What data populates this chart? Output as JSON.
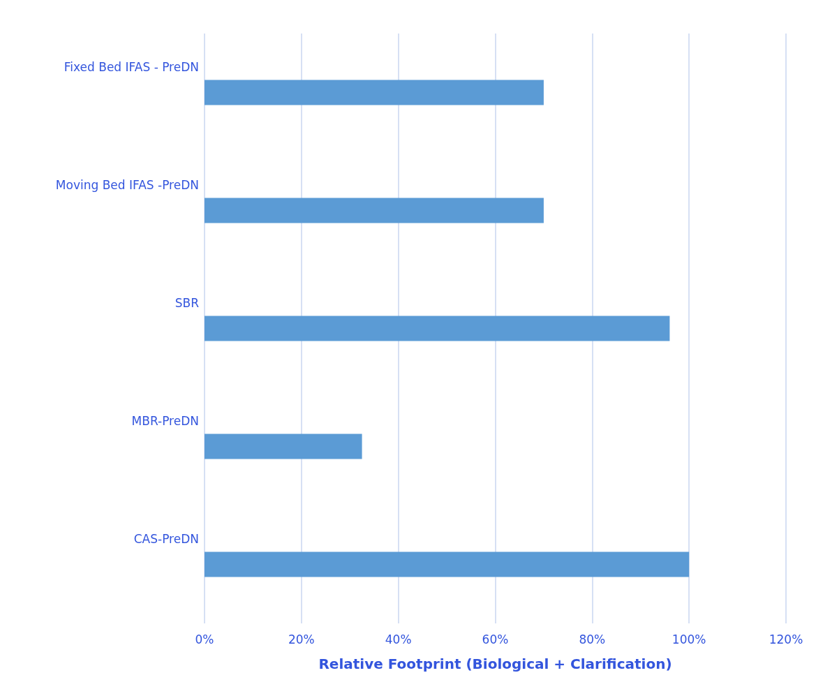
{
  "chart_data": {
    "type": "bar",
    "orientation": "horizontal",
    "categories": [
      "Fixed Bed IFAS - PreDN",
      "Moving Bed IFAS -PreDN",
      "SBR",
      "MBR-PreDN",
      "CAS-PreDN"
    ],
    "values": [
      70,
      70,
      96,
      32.5,
      100
    ],
    "color": "#5b9bd5",
    "xlabel": "Relative Footprint (Biological + Clarification)",
    "xlim": [
      0,
      120
    ],
    "xticks": [
      {
        "value": 0,
        "label": "0%"
      },
      {
        "value": 20,
        "label": "20%"
      },
      {
        "value": 40,
        "label": "40%"
      },
      {
        "value": 60,
        "label": "60%"
      },
      {
        "value": 80,
        "label": "80%"
      },
      {
        "value": 100,
        "label": "100%"
      },
      {
        "value": 120,
        "label": "120%"
      }
    ],
    "grid": "x"
  }
}
